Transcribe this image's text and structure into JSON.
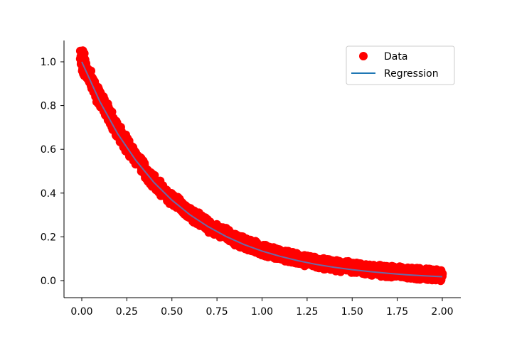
{
  "chart_data": {
    "type": "scatter",
    "title": "",
    "xlabel": "",
    "ylabel": "",
    "xlim": [
      -0.1,
      2.1
    ],
    "ylim": [
      -0.08,
      1.1
    ],
    "xticks": [
      "0.00",
      "0.25",
      "0.50",
      "0.75",
      "1.00",
      "1.25",
      "1.50",
      "1.75",
      "2.00"
    ],
    "yticks": [
      "0.0",
      "0.2",
      "0.4",
      "0.6",
      "0.8",
      "1.0"
    ],
    "grid": false,
    "legend_position": "top-right",
    "series": [
      {
        "name": "Data",
        "kind": "scatter",
        "color": "#ff0000",
        "x": [
          0.0,
          0.01,
          0.02,
          0.04,
          0.06,
          0.08,
          0.1,
          0.12,
          0.15,
          0.18,
          0.21,
          0.25,
          0.28,
          0.32,
          0.36,
          0.4,
          0.45,
          0.5,
          0.55,
          0.6,
          0.65,
          0.7,
          0.75,
          0.8,
          0.85,
          0.9,
          0.95,
          1.0,
          1.05,
          1.1,
          1.15,
          1.2,
          1.25,
          1.3,
          1.35,
          1.4,
          1.45,
          1.5,
          1.55,
          1.6,
          1.65,
          1.7,
          1.75,
          1.8,
          1.85,
          1.9,
          1.95,
          2.0
        ],
        "y": [
          1.04,
          0.99,
          0.96,
          0.94,
          0.9,
          0.87,
          0.83,
          0.8,
          0.76,
          0.71,
          0.67,
          0.62,
          0.58,
          0.54,
          0.49,
          0.45,
          0.41,
          0.37,
          0.34,
          0.3,
          0.28,
          0.25,
          0.23,
          0.21,
          0.19,
          0.17,
          0.16,
          0.14,
          0.13,
          0.12,
          0.11,
          0.1,
          0.09,
          0.085,
          0.075,
          0.07,
          0.065,
          0.06,
          0.055,
          0.05,
          0.045,
          0.042,
          0.04,
          0.035,
          0.032,
          0.03,
          0.028,
          0.02
        ]
      },
      {
        "name": "Regression",
        "kind": "line",
        "color": "#1f77b4",
        "x": [
          0.0,
          0.1,
          0.2,
          0.3,
          0.4,
          0.5,
          0.6,
          0.7,
          0.8,
          0.9,
          1.0,
          1.1,
          1.2,
          1.3,
          1.4,
          1.5,
          1.6,
          1.7,
          1.8,
          1.9,
          2.0
        ],
        "y": [
          1.0,
          0.819,
          0.67,
          0.549,
          0.449,
          0.368,
          0.301,
          0.247,
          0.202,
          0.165,
          0.135,
          0.111,
          0.091,
          0.074,
          0.061,
          0.05,
          0.041,
          0.033,
          0.027,
          0.022,
          0.018
        ]
      }
    ]
  }
}
